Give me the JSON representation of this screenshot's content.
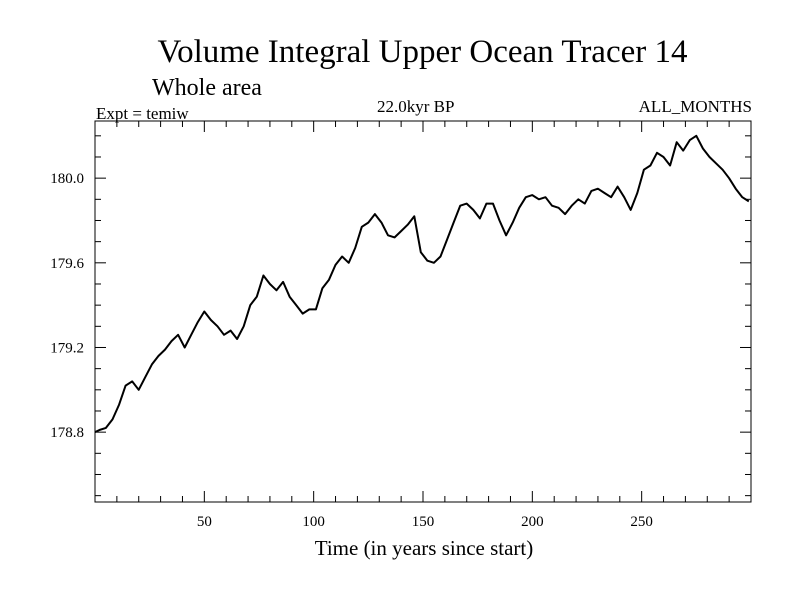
{
  "chart_data": {
    "type": "line",
    "title": "Volume Integral Upper Ocean Tracer 14",
    "subtitle": "Whole area",
    "expt_label": "Expt = temiw",
    "period_label": "22.0kyr BP",
    "months_label": "ALL_MONTHS",
    "xlabel": "Time (in years since start)",
    "ylabel": "",
    "xlim": [
      0,
      300
    ],
    "ylim": [
      178.47,
      180.27
    ],
    "x_major_ticks": [
      50,
      100,
      150,
      200,
      250
    ],
    "x_tick_labels": [
      "50",
      "100",
      "150",
      "200",
      "250"
    ],
    "x_minor_step": 10,
    "y_major_ticks": [
      178.8,
      179.2,
      179.6,
      180.0
    ],
    "y_tick_labels": [
      "178.8",
      "179.2",
      "179.6",
      "180.0"
    ],
    "y_minor_step": 0.1,
    "grid": false,
    "series": [
      {
        "name": "Tracer 14",
        "x": [
          0,
          2,
          5,
          8,
          11,
          14,
          17,
          20,
          23,
          26,
          29,
          32,
          35,
          38,
          41,
          44,
          47,
          50,
          53,
          56,
          59,
          62,
          65,
          68,
          71,
          74,
          77,
          80,
          83,
          86,
          89,
          92,
          95,
          98,
          101,
          104,
          107,
          110,
          113,
          116,
          119,
          122,
          125,
          128,
          131,
          134,
          137,
          140,
          143,
          146,
          149,
          152,
          155,
          158,
          161,
          164,
          167,
          170,
          173,
          176,
          179,
          182,
          185,
          188,
          191,
          194,
          197,
          200,
          203,
          206,
          209,
          212,
          215,
          218,
          221,
          224,
          227,
          230,
          233,
          236,
          239,
          242,
          245,
          248,
          251,
          254,
          257,
          260,
          263,
          266,
          269,
          272,
          275,
          278,
          281,
          284,
          287,
          290,
          293,
          296,
          299
        ],
        "values": [
          178.8,
          178.81,
          178.82,
          178.86,
          178.93,
          179.02,
          179.04,
          179.0,
          179.06,
          179.12,
          179.16,
          179.19,
          179.23,
          179.26,
          179.2,
          179.26,
          179.32,
          179.37,
          179.33,
          179.3,
          179.26,
          179.28,
          179.24,
          179.3,
          179.4,
          179.44,
          179.54,
          179.5,
          179.47,
          179.51,
          179.44,
          179.4,
          179.36,
          179.38,
          179.38,
          179.48,
          179.52,
          179.59,
          179.63,
          179.6,
          179.67,
          179.77,
          179.79,
          179.83,
          179.79,
          179.73,
          179.72,
          179.75,
          179.78,
          179.82,
          179.65,
          179.61,
          179.6,
          179.63,
          179.71,
          179.79,
          179.87,
          179.88,
          179.85,
          179.81,
          179.88,
          179.88,
          179.8,
          179.73,
          179.79,
          179.86,
          179.91,
          179.92,
          179.9,
          179.91,
          179.87,
          179.86,
          179.83,
          179.87,
          179.9,
          179.88,
          179.94,
          179.95,
          179.93,
          179.91,
          179.96,
          179.91,
          179.85,
          179.93,
          180.04,
          180.06,
          180.12,
          180.1,
          180.06,
          180.17,
          180.13,
          180.18,
          180.2,
          180.14,
          180.1,
          180.07,
          180.04,
          180.0,
          179.95,
          179.91,
          179.89
        ]
      }
    ]
  }
}
